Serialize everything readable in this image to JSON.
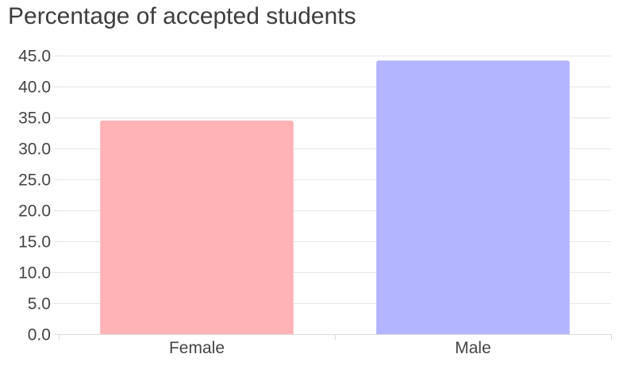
{
  "chart_data": {
    "type": "bar",
    "title": "Percentage of accepted students",
    "xlabel": "",
    "ylabel": "",
    "categories": [
      "Female",
      "Male"
    ],
    "values": [
      34.5,
      44.2
    ],
    "colors": [
      "#ffb3b6",
      "#b3b5ff"
    ],
    "ylim": [
      0,
      45
    ],
    "yticks": [
      "0.0",
      "5.0",
      "10.0",
      "15.0",
      "20.0",
      "25.0",
      "30.0",
      "35.0",
      "40.0",
      "45.0"
    ],
    "grid": true,
    "legend": "none"
  }
}
